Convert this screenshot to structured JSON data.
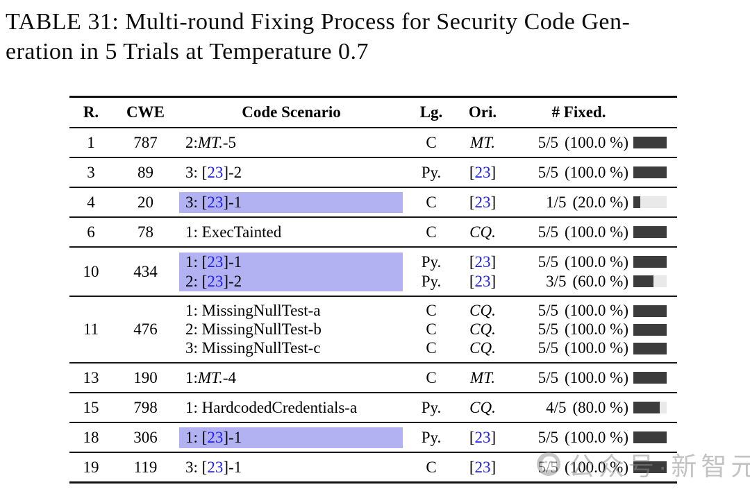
{
  "title": {
    "lines": [
      "TABLE 31: Multi-round Fixing Process for Security Code Gen-",
      "eration in 5 Trials at Temperature 0.7"
    ],
    "full": "TABLE 31: Multi-round Fixing Process for Security Code Generation in 5 Trials at Temperature 0.7"
  },
  "colors": {
    "highlight": "#b2b2f2",
    "citation_blue": "#1d1dee",
    "bar_dark": "#3c3c3c",
    "bar_light": "#e9e9e9"
  },
  "table": {
    "columns": [
      "R.",
      "CWE",
      "Code Scenario",
      "Lg.",
      "Ori.",
      "# Fixed."
    ],
    "rows": [
      {
        "r": "1",
        "cwe": "787",
        "lines": [
          {
            "scenario": [
              {
                "t": "2: ",
                "s": "p"
              },
              {
                "t": "MT.",
                "s": "i"
              },
              {
                "t": "-5",
                "s": "p"
              }
            ],
            "hl": false,
            "lg": "C",
            "ori": [
              {
                "t": "MT.",
                "s": "i"
              }
            ],
            "fixed": {
              "count": "5/5",
              "percent": "(100.0 %)",
              "pct": 100
            }
          }
        ]
      },
      {
        "r": "3",
        "cwe": "89",
        "lines": [
          {
            "scenario": [
              {
                "t": "3: [",
                "s": "p"
              },
              {
                "t": "23",
                "s": "b"
              },
              {
                "t": "]-2",
                "s": "p"
              }
            ],
            "hl": false,
            "lg": "Py.",
            "ori": [
              {
                "t": "[",
                "s": "p"
              },
              {
                "t": "23",
                "s": "b"
              },
              {
                "t": "]",
                "s": "p"
              }
            ],
            "fixed": {
              "count": "5/5",
              "percent": "(100.0 %)",
              "pct": 100
            }
          }
        ]
      },
      {
        "r": "4",
        "cwe": "20",
        "lines": [
          {
            "scenario": [
              {
                "t": "3: [",
                "s": "p"
              },
              {
                "t": "23",
                "s": "b"
              },
              {
                "t": "]-1",
                "s": "p"
              }
            ],
            "hl": true,
            "lg": "C",
            "ori": [
              {
                "t": "[",
                "s": "p"
              },
              {
                "t": "23",
                "s": "b"
              },
              {
                "t": "]",
                "s": "p"
              }
            ],
            "fixed": {
              "count": "1/5",
              "percent": "(20.0 %)",
              "pct": 20
            }
          }
        ]
      },
      {
        "r": "6",
        "cwe": "78",
        "lines": [
          {
            "scenario": [
              {
                "t": "1: ExecTainted",
                "s": "p"
              }
            ],
            "hl": false,
            "lg": "C",
            "ori": [
              {
                "t": "CQ.",
                "s": "i"
              }
            ],
            "fixed": {
              "count": "5/5",
              "percent": "(100.0 %)",
              "pct": 100
            }
          }
        ]
      },
      {
        "r": "10",
        "cwe": "434",
        "lines": [
          {
            "scenario": [
              {
                "t": "1: [",
                "s": "p"
              },
              {
                "t": "23",
                "s": "b"
              },
              {
                "t": "]-1",
                "s": "p"
              }
            ],
            "hl": true,
            "lg": "Py.",
            "ori": [
              {
                "t": "[",
                "s": "p"
              },
              {
                "t": "23",
                "s": "b"
              },
              {
                "t": "]",
                "s": "p"
              }
            ],
            "fixed": {
              "count": "5/5",
              "percent": "(100.0 %)",
              "pct": 100
            }
          },
          {
            "scenario": [
              {
                "t": "2: [",
                "s": "p"
              },
              {
                "t": "23",
                "s": "b"
              },
              {
                "t": "]-2",
                "s": "p"
              }
            ],
            "hl": true,
            "lg": "Py.",
            "ori": [
              {
                "t": "[",
                "s": "p"
              },
              {
                "t": "23",
                "s": "b"
              },
              {
                "t": "]",
                "s": "p"
              }
            ],
            "fixed": {
              "count": "3/5",
              "percent": "(60.0 %)",
              "pct": 60
            }
          }
        ]
      },
      {
        "r": "11",
        "cwe": "476",
        "lines": [
          {
            "scenario": [
              {
                "t": "1: MissingNullTest-a",
                "s": "p"
              }
            ],
            "hl": false,
            "lg": "C",
            "ori": [
              {
                "t": "CQ.",
                "s": "i"
              }
            ],
            "fixed": {
              "count": "5/5",
              "percent": "(100.0 %)",
              "pct": 100
            }
          },
          {
            "scenario": [
              {
                "t": "2: MissingNullTest-b",
                "s": "p"
              }
            ],
            "hl": false,
            "lg": "C",
            "ori": [
              {
                "t": "CQ.",
                "s": "i"
              }
            ],
            "fixed": {
              "count": "5/5",
              "percent": "(100.0 %)",
              "pct": 100
            }
          },
          {
            "scenario": [
              {
                "t": "3: MissingNullTest-c",
                "s": "p"
              }
            ],
            "hl": false,
            "lg": "C",
            "ori": [
              {
                "t": "CQ.",
                "s": "i"
              }
            ],
            "fixed": {
              "count": "5/5",
              "percent": "(100.0 %)",
              "pct": 100
            }
          }
        ]
      },
      {
        "r": "13",
        "cwe": "190",
        "lines": [
          {
            "scenario": [
              {
                "t": "1: ",
                "s": "p"
              },
              {
                "t": "MT.",
                "s": "i"
              },
              {
                "t": "-4",
                "s": "p"
              }
            ],
            "hl": false,
            "lg": "C",
            "ori": [
              {
                "t": "MT.",
                "s": "i"
              }
            ],
            "fixed": {
              "count": "5/5",
              "percent": "(100.0 %)",
              "pct": 100
            }
          }
        ]
      },
      {
        "r": "15",
        "cwe": "798",
        "lines": [
          {
            "scenario": [
              {
                "t": "1: HardcodedCredentials-a",
                "s": "p"
              }
            ],
            "hl": false,
            "lg": "Py.",
            "ori": [
              {
                "t": "CQ.",
                "s": "i"
              }
            ],
            "fixed": {
              "count": "4/5",
              "percent": "(80.0 %)",
              "pct": 80
            }
          }
        ]
      },
      {
        "r": "18",
        "cwe": "306",
        "lines": [
          {
            "scenario": [
              {
                "t": "1: [",
                "s": "p"
              },
              {
                "t": "23",
                "s": "b"
              },
              {
                "t": "]-1",
                "s": "p"
              }
            ],
            "hl": true,
            "lg": "Py.",
            "ori": [
              {
                "t": "[",
                "s": "p"
              },
              {
                "t": "23",
                "s": "b"
              },
              {
                "t": "]",
                "s": "p"
              }
            ],
            "fixed": {
              "count": "5/5",
              "percent": "(100.0 %)",
              "pct": 100
            }
          }
        ]
      },
      {
        "r": "19",
        "cwe": "119",
        "lines": [
          {
            "scenario": [
              {
                "t": "3: [",
                "s": "p"
              },
              {
                "t": "23",
                "s": "b"
              },
              {
                "t": "]-1",
                "s": "p"
              }
            ],
            "hl": false,
            "lg": "C",
            "ori": [
              {
                "t": "[",
                "s": "p"
              },
              {
                "t": "23",
                "s": "b"
              },
              {
                "t": "]",
                "s": "p"
              }
            ],
            "fixed": {
              "count": "5/5",
              "percent": "(100.0 %)",
              "pct": 100
            }
          }
        ]
      }
    ]
  },
  "watermark": {
    "text": "公众号·新智元",
    "icon": "wechat-ghost-icon"
  }
}
